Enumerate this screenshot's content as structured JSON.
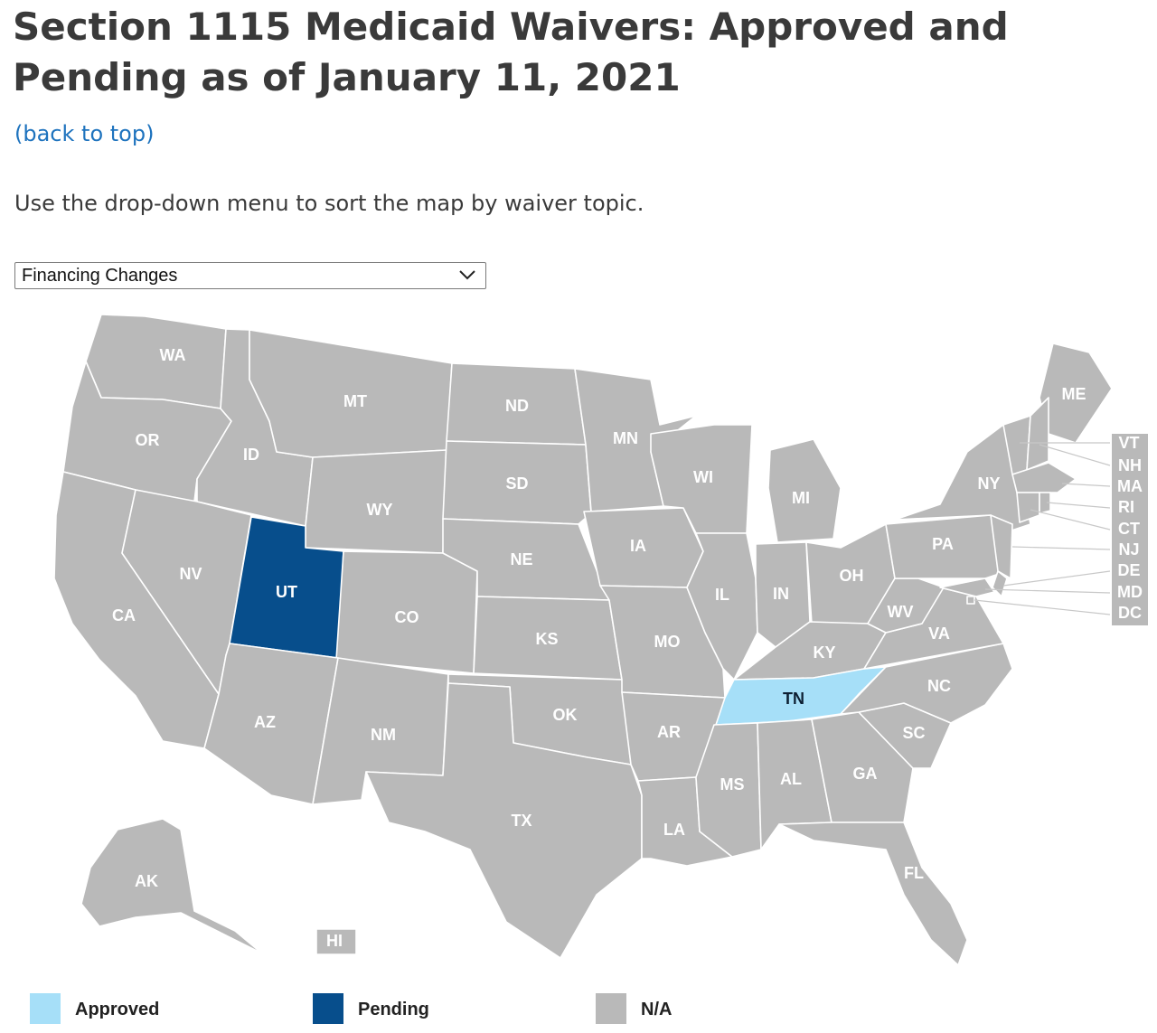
{
  "title": "Section 1115 Medicaid Waivers: Approved and Pending as of January 11, 2021",
  "back_link": "(back to top)",
  "intro": "Use the drop-down menu to sort the map by waiver topic.",
  "dropdown": {
    "selected": "Financing Changes"
  },
  "colors": {
    "approved": "#a6dff8",
    "pending": "#074e8c",
    "na": "#b9b9b9",
    "border": "#ffffff"
  },
  "legend": [
    {
      "label": "Approved",
      "status": "approved"
    },
    {
      "label": "Pending",
      "status": "pending"
    },
    {
      "label": "N/A",
      "status": "na"
    }
  ],
  "states": [
    {
      "abbr": "WA",
      "status": "na"
    },
    {
      "abbr": "OR",
      "status": "na"
    },
    {
      "abbr": "CA",
      "status": "na"
    },
    {
      "abbr": "ID",
      "status": "na"
    },
    {
      "abbr": "NV",
      "status": "na"
    },
    {
      "abbr": "MT",
      "status": "na"
    },
    {
      "abbr": "WY",
      "status": "na"
    },
    {
      "abbr": "UT",
      "status": "pending"
    },
    {
      "abbr": "CO",
      "status": "na"
    },
    {
      "abbr": "AZ",
      "status": "na"
    },
    {
      "abbr": "NM",
      "status": "na"
    },
    {
      "abbr": "ND",
      "status": "na"
    },
    {
      "abbr": "SD",
      "status": "na"
    },
    {
      "abbr": "NE",
      "status": "na"
    },
    {
      "abbr": "KS",
      "status": "na"
    },
    {
      "abbr": "OK",
      "status": "na"
    },
    {
      "abbr": "TX",
      "status": "na"
    },
    {
      "abbr": "MN",
      "status": "na"
    },
    {
      "abbr": "IA",
      "status": "na"
    },
    {
      "abbr": "MO",
      "status": "na"
    },
    {
      "abbr": "AR",
      "status": "na"
    },
    {
      "abbr": "LA",
      "status": "na"
    },
    {
      "abbr": "WI",
      "status": "na"
    },
    {
      "abbr": "IL",
      "status": "na"
    },
    {
      "abbr": "MI",
      "status": "na"
    },
    {
      "abbr": "IN",
      "status": "na"
    },
    {
      "abbr": "OH",
      "status": "na"
    },
    {
      "abbr": "KY",
      "status": "na"
    },
    {
      "abbr": "TN",
      "status": "approved"
    },
    {
      "abbr": "MS",
      "status": "na"
    },
    {
      "abbr": "AL",
      "status": "na"
    },
    {
      "abbr": "GA",
      "status": "na"
    },
    {
      "abbr": "FL",
      "status": "na"
    },
    {
      "abbr": "SC",
      "status": "na"
    },
    {
      "abbr": "NC",
      "status": "na"
    },
    {
      "abbr": "VA",
      "status": "na"
    },
    {
      "abbr": "WV",
      "status": "na"
    },
    {
      "abbr": "PA",
      "status": "na"
    },
    {
      "abbr": "NY",
      "status": "na"
    },
    {
      "abbr": "ME",
      "status": "na"
    },
    {
      "abbr": "VT",
      "status": "na"
    },
    {
      "abbr": "NH",
      "status": "na"
    },
    {
      "abbr": "MA",
      "status": "na"
    },
    {
      "abbr": "RI",
      "status": "na"
    },
    {
      "abbr": "CT",
      "status": "na"
    },
    {
      "abbr": "NJ",
      "status": "na"
    },
    {
      "abbr": "DE",
      "status": "na"
    },
    {
      "abbr": "MD",
      "status": "na"
    },
    {
      "abbr": "DC",
      "status": "na"
    },
    {
      "abbr": "AK",
      "status": "na"
    },
    {
      "abbr": "HI",
      "status": "na"
    }
  ]
}
